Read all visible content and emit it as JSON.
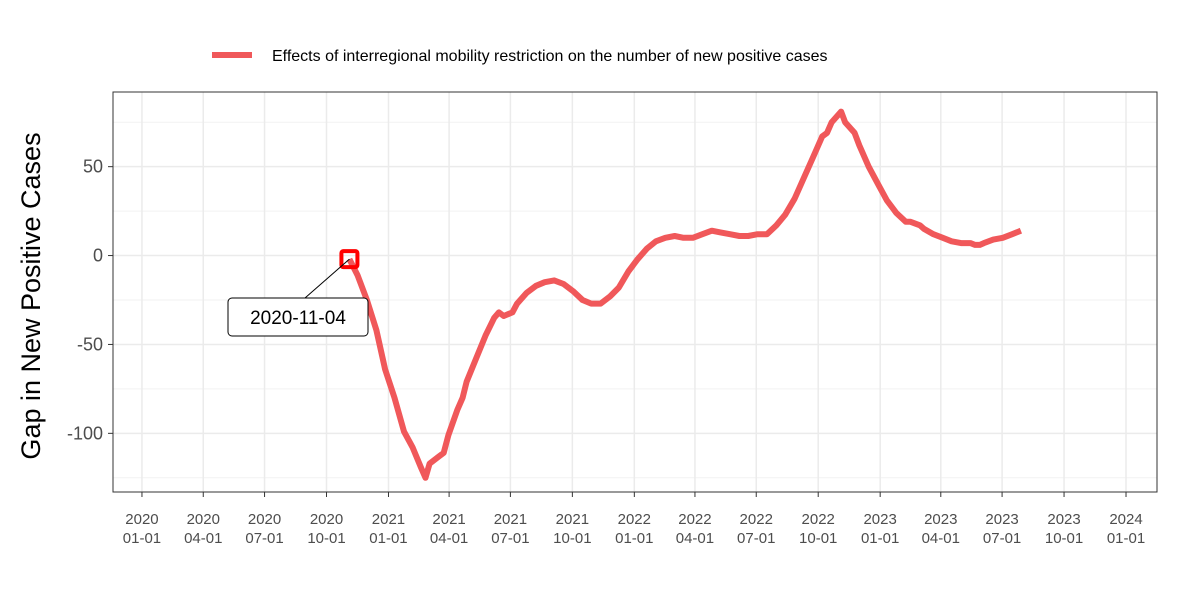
{
  "chart_data": {
    "type": "line",
    "title": "",
    "xlabel": "",
    "ylabel": "Gap in New Positive Cases",
    "ylim": [
      -133,
      92
    ],
    "yticks": [
      50,
      0,
      -50,
      -100
    ],
    "ytick_labels": [
      "50",
      "0",
      "-50",
      "-100"
    ],
    "xlim_days": [
      -43,
      1507
    ],
    "xticks": [
      {
        "day": 0,
        "line1": "2020",
        "line2": "01-01"
      },
      {
        "day": 91,
        "line1": "2020",
        "line2": "04-01"
      },
      {
        "day": 182,
        "line1": "2020",
        "line2": "07-01"
      },
      {
        "day": 274,
        "line1": "2020",
        "line2": "10-01"
      },
      {
        "day": 366,
        "line1": "2021",
        "line2": "01-01"
      },
      {
        "day": 456,
        "line1": "2021",
        "line2": "04-01"
      },
      {
        "day": 547,
        "line1": "2021",
        "line2": "07-01"
      },
      {
        "day": 639,
        "line1": "2021",
        "line2": "10-01"
      },
      {
        "day": 731,
        "line1": "2022",
        "line2": "01-01"
      },
      {
        "day": 821,
        "line1": "2022",
        "line2": "04-01"
      },
      {
        "day": 912,
        "line1": "2022",
        "line2": "07-01"
      },
      {
        "day": 1004,
        "line1": "2022",
        "line2": "10-01"
      },
      {
        "day": 1096,
        "line1": "2023",
        "line2": "01-01"
      },
      {
        "day": 1186,
        "line1": "2023",
        "line2": "04-01"
      },
      {
        "day": 1277,
        "line1": "2023",
        "line2": "07-01"
      },
      {
        "day": 1369,
        "line1": "2023",
        "line2": "10-01"
      },
      {
        "day": 1461,
        "line1": "2024",
        "line2": "01-01"
      }
    ],
    "grid": true,
    "legend_position": "top",
    "series": [
      {
        "name": "Effects of interregional mobility restriction on the number of new positive cases",
        "color": "#f0585a",
        "points": [
          [
            308,
            -2
          ],
          [
            320,
            -11
          ],
          [
            334,
            -25
          ],
          [
            348,
            -42
          ],
          [
            361,
            -64
          ],
          [
            375,
            -80
          ],
          [
            389,
            -99
          ],
          [
            402,
            -108
          ],
          [
            414,
            -119
          ],
          [
            421,
            -125
          ],
          [
            427,
            -117
          ],
          [
            441,
            -113
          ],
          [
            448,
            -111
          ],
          [
            455,
            -101
          ],
          [
            468,
            -87
          ],
          [
            476,
            -80
          ],
          [
            482,
            -71
          ],
          [
            496,
            -58
          ],
          [
            510,
            -45
          ],
          [
            523,
            -35
          ],
          [
            530,
            -32
          ],
          [
            537,
            -34
          ],
          [
            550,
            -32
          ],
          [
            557,
            -27
          ],
          [
            571,
            -21
          ],
          [
            585,
            -17
          ],
          [
            598,
            -15
          ],
          [
            612,
            -14
          ],
          [
            626,
            -16
          ],
          [
            640,
            -20
          ],
          [
            654,
            -25
          ],
          [
            667,
            -27
          ],
          [
            681,
            -27
          ],
          [
            695,
            -23
          ],
          [
            708,
            -18
          ],
          [
            722,
            -9
          ],
          [
            736,
            -2
          ],
          [
            750,
            4
          ],
          [
            763,
            8
          ],
          [
            777,
            10
          ],
          [
            791,
            11
          ],
          [
            804,
            10
          ],
          [
            818,
            10
          ],
          [
            832,
            12
          ],
          [
            846,
            14
          ],
          [
            859,
            13
          ],
          [
            873,
            12
          ],
          [
            887,
            11
          ],
          [
            900,
            11
          ],
          [
            914,
            12
          ],
          [
            928,
            12
          ],
          [
            942,
            17
          ],
          [
            955,
            23
          ],
          [
            969,
            32
          ],
          [
            983,
            44
          ],
          [
            996,
            55
          ],
          [
            1010,
            67
          ],
          [
            1017,
            69
          ],
          [
            1024,
            75
          ],
          [
            1038,
            81
          ],
          [
            1044,
            75
          ],
          [
            1058,
            69
          ],
          [
            1065,
            62
          ],
          [
            1079,
            50
          ],
          [
            1093,
            40
          ],
          [
            1106,
            31
          ],
          [
            1120,
            24
          ],
          [
            1134,
            19
          ],
          [
            1141,
            19
          ],
          [
            1148,
            18
          ],
          [
            1155,
            17
          ],
          [
            1161,
            15
          ],
          [
            1175,
            12
          ],
          [
            1189,
            10
          ],
          [
            1202,
            8
          ],
          [
            1216,
            7
          ],
          [
            1230,
            7
          ],
          [
            1237,
            6
          ],
          [
            1244,
            6
          ],
          [
            1250,
            7
          ],
          [
            1264,
            9
          ],
          [
            1278,
            10
          ],
          [
            1292,
            12
          ],
          [
            1305,
            14
          ]
        ]
      }
    ],
    "annotations": [
      {
        "text": "2020-11-04",
        "day": 308,
        "value": -2
      }
    ]
  }
}
